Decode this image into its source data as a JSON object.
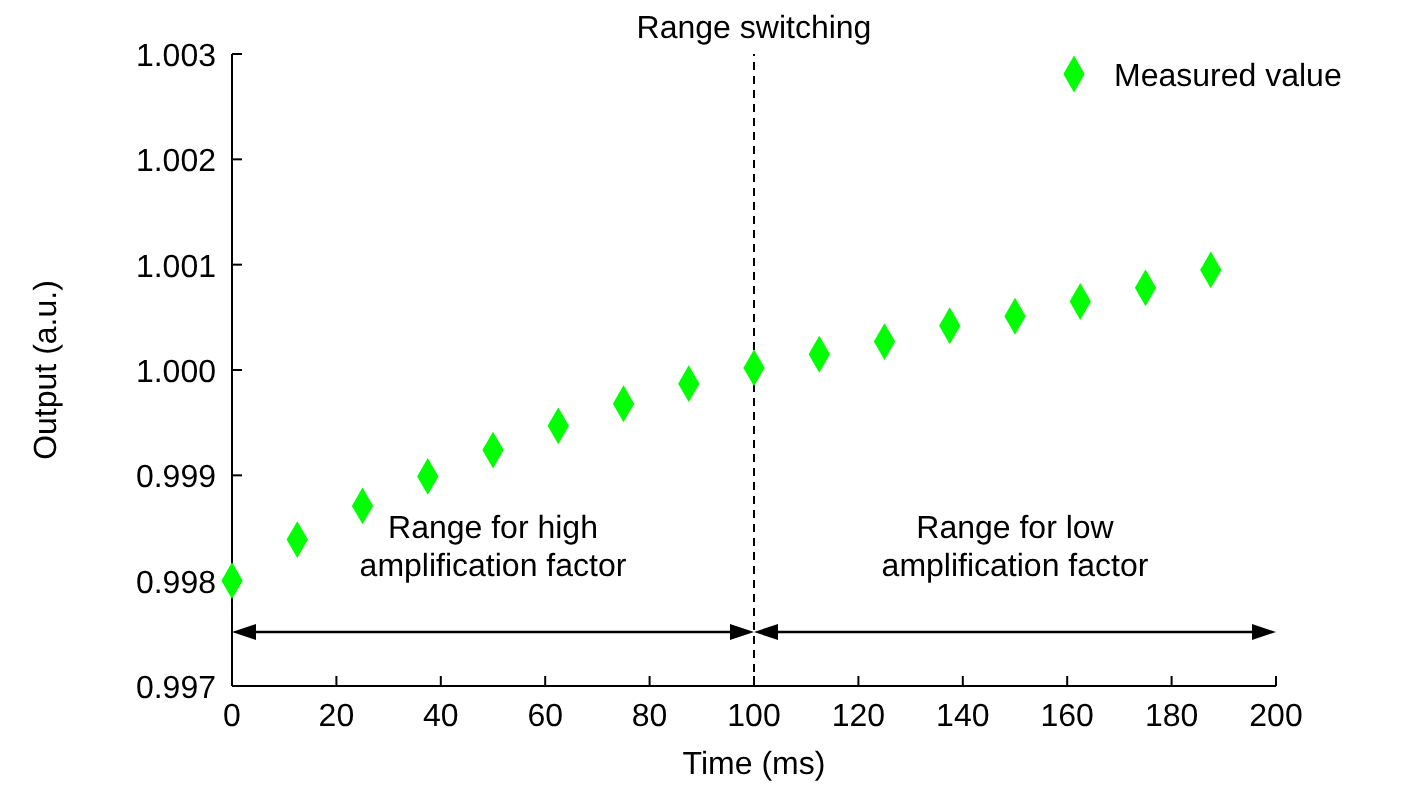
{
  "chart_data": {
    "type": "scatter",
    "xlabel": "Time (ms)",
    "ylabel": "Output (a.u.)",
    "x": [
      0,
      12.5,
      25,
      37.5,
      50,
      62.5,
      75,
      87.5,
      100,
      112.5,
      125,
      137.5,
      150,
      162.5,
      175,
      187.5
    ],
    "series": [
      {
        "name": "Measured value",
        "color": "#00ff00",
        "values": [
          0.998,
          0.99839,
          0.99871,
          0.99899,
          0.99924,
          0.99947,
          0.99968,
          0.99987,
          1.00002,
          1.00015,
          1.00027,
          1.00042,
          1.00051,
          1.00065,
          1.00078,
          1.00095
        ]
      }
    ],
    "xlim": [
      0,
      200
    ],
    "xticks": [
      0,
      20,
      40,
      60,
      80,
      100,
      120,
      140,
      160,
      180,
      200
    ],
    "ylim": [
      0.997,
      1.003
    ],
    "yticks": [
      {
        "value": 0.997,
        "label": "0.997"
      },
      {
        "value": 0.998,
        "label": "0.998"
      },
      {
        "value": 0.999,
        "label": "0.999"
      },
      {
        "value": 1.0,
        "label": "1.000"
      },
      {
        "value": 1.001,
        "label": "1.001"
      },
      {
        "value": 1.002,
        "label": "1.002"
      },
      {
        "value": 1.003,
        "label": "1.003"
      }
    ],
    "ref_lines": [
      {
        "axis": "x",
        "value": 100,
        "label": "Range switching",
        "line_style": "dashed",
        "color": "#000000"
      }
    ],
    "annotations": [
      "Range for high amplification factor",
      "Range for low amplification factor"
    ],
    "marker": "diamond",
    "legend": "top right",
    "grid": false
  }
}
